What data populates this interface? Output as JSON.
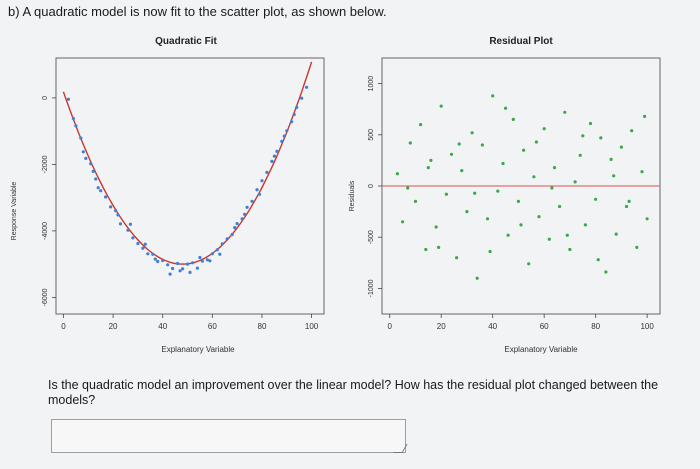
{
  "heading": "b) A quadratic model is now fit to the scatter plot, as shown below.",
  "question": "Is the quadratic model an improvement over the linear model? How has the residual plot changed between the models?",
  "answer": {
    "value": "",
    "placeholder": ""
  },
  "chart_data": [
    {
      "type": "scatter",
      "title": "Quadratic Fit",
      "xlabel": "Explanatory Variable",
      "ylabel": "Response Variable",
      "xlim": [
        -3,
        105
      ],
      "ylim": [
        -6500,
        1200
      ],
      "x_ticks": [
        0,
        20,
        40,
        60,
        80,
        100
      ],
      "y_ticks": [
        0,
        -2000,
        -4000,
        -6000
      ],
      "x_tick_labels": [
        "0",
        "20",
        "40",
        "60",
        "80",
        "100"
      ],
      "y_tick_labels": [
        "0",
        "-2000",
        "-4000",
        "-6000"
      ],
      "fit_curve": {
        "type": "quadratic",
        "vertex_x": 48,
        "vertex_y": -5000,
        "curvature": 2.25
      },
      "series": [
        {
          "points": [
            [
              2,
              -40
            ],
            [
              4,
              -620
            ],
            [
              5,
              -840
            ],
            [
              7,
              -1210
            ],
            [
              8,
              -1620
            ],
            [
              9,
              -1820
            ],
            [
              11,
              -1980
            ],
            [
              12,
              -2210
            ],
            [
              13,
              -2440
            ],
            [
              15,
              -2790
            ],
            [
              17,
              -2980
            ],
            [
              19,
              -3280
            ],
            [
              21,
              -3390
            ],
            [
              23,
              -3790
            ],
            [
              26,
              -3980
            ],
            [
              28,
              -4210
            ],
            [
              30,
              -4380
            ],
            [
              32,
              -4520
            ],
            [
              34,
              -4690
            ],
            [
              36,
              -4700
            ],
            [
              38,
              -4920
            ],
            [
              40,
              -4890
            ],
            [
              42,
              -5020
            ],
            [
              44,
              -5130
            ],
            [
              46,
              -4980
            ],
            [
              48,
              -5140
            ],
            [
              50,
              -5000
            ],
            [
              52,
              -4960
            ],
            [
              54,
              -5120
            ],
            [
              56,
              -4910
            ],
            [
              58,
              -4870
            ],
            [
              60,
              -4690
            ],
            [
              62,
              -4570
            ],
            [
              64,
              -4390
            ],
            [
              66,
              -4240
            ],
            [
              68,
              -4110
            ],
            [
              70,
              -3780
            ],
            [
              72,
              -3640
            ],
            [
              74,
              -3290
            ],
            [
              76,
              -3110
            ],
            [
              78,
              -2760
            ],
            [
              80,
              -2490
            ],
            [
              82,
              -2240
            ],
            [
              84,
              -1910
            ],
            [
              86,
              -1610
            ],
            [
              88,
              -1310
            ],
            [
              90,
              -990
            ],
            [
              92,
              -720
            ],
            [
              94,
              -290
            ],
            [
              96,
              -10
            ],
            [
              98,
              320
            ],
            [
              14,
              -2700
            ],
            [
              22,
              -3520
            ],
            [
              27,
              -3800
            ],
            [
              33,
              -4400
            ],
            [
              37,
              -4850
            ],
            [
              43,
              -5300
            ],
            [
              47,
              -5200
            ],
            [
              51,
              -5250
            ],
            [
              55,
              -4800
            ],
            [
              59,
              -4900
            ],
            [
              63,
              -4700
            ],
            [
              69,
              -3900
            ],
            [
              73,
              -3500
            ],
            [
              79,
              -2900
            ],
            [
              85,
              -1750
            ],
            [
              89,
              -1150
            ],
            [
              93,
              -500
            ]
          ]
        }
      ]
    },
    {
      "type": "scatter",
      "title": "Residual Plot",
      "xlabel": "Explanatory Variable",
      "ylabel": "Residuals",
      "xlim": [
        -3,
        105
      ],
      "ylim": [
        -1250,
        1250
      ],
      "x_ticks": [
        0,
        20,
        40,
        60,
        80,
        100
      ],
      "y_ticks": [
        -1000,
        -500,
        0,
        500,
        1000
      ],
      "x_tick_labels": [
        "0",
        "20",
        "40",
        "60",
        "80",
        "100"
      ],
      "y_tick_labels": [
        "-1000",
        "-500",
        "0",
        "500",
        "1000"
      ],
      "reference_line_y": 0,
      "series": [
        {
          "points": [
            [
              3,
              120
            ],
            [
              5,
              -350
            ],
            [
              8,
              420
            ],
            [
              10,
              -150
            ],
            [
              12,
              600
            ],
            [
              14,
              -620
            ],
            [
              16,
              250
            ],
            [
              18,
              -400
            ],
            [
              20,
              780
            ],
            [
              22,
              -80
            ],
            [
              24,
              310
            ],
            [
              26,
              -700
            ],
            [
              28,
              150
            ],
            [
              30,
              -250
            ],
            [
              32,
              520
            ],
            [
              34,
              -900
            ],
            [
              36,
              400
            ],
            [
              38,
              -320
            ],
            [
              40,
              880
            ],
            [
              42,
              -50
            ],
            [
              44,
              220
            ],
            [
              46,
              -480
            ],
            [
              48,
              650
            ],
            [
              50,
              -150
            ],
            [
              52,
              350
            ],
            [
              54,
              -760
            ],
            [
              56,
              90
            ],
            [
              58,
              -300
            ],
            [
              60,
              560
            ],
            [
              62,
              -520
            ],
            [
              64,
              180
            ],
            [
              66,
              -200
            ],
            [
              68,
              720
            ],
            [
              70,
              -620
            ],
            [
              72,
              40
            ],
            [
              74,
              300
            ],
            [
              76,
              -380
            ],
            [
              78,
              610
            ],
            [
              80,
              -130
            ],
            [
              82,
              470
            ],
            [
              84,
              -840
            ],
            [
              86,
              260
            ],
            [
              88,
              -470
            ],
            [
              90,
              380
            ],
            [
              92,
              -200
            ],
            [
              94,
              540
            ],
            [
              96,
              -600
            ],
            [
              98,
              140
            ],
            [
              100,
              -320
            ],
            [
              7,
              -20
            ],
            [
              15,
              180
            ],
            [
              19,
              -600
            ],
            [
              27,
              410
            ],
            [
              33,
              -70
            ],
            [
              39,
              -640
            ],
            [
              45,
              760
            ],
            [
              51,
              -380
            ],
            [
              57,
              430
            ],
            [
              63,
              -20
            ],
            [
              69,
              -480
            ],
            [
              75,
              490
            ],
            [
              81,
              -720
            ],
            [
              87,
              100
            ],
            [
              93,
              -150
            ],
            [
              99,
              680
            ]
          ]
        }
      ]
    }
  ]
}
